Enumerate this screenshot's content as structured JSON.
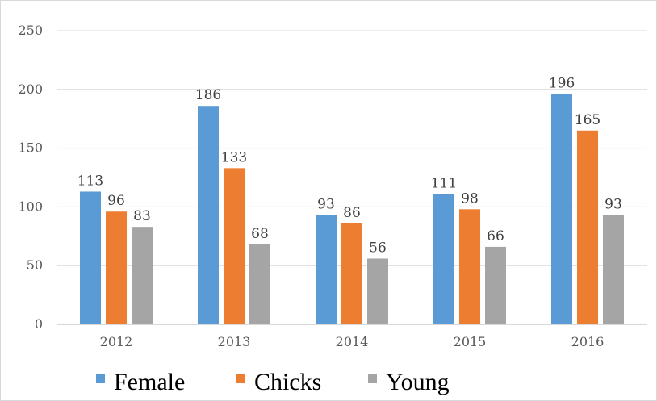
{
  "chart_data": {
    "type": "bar",
    "title": "",
    "xlabel": "",
    "ylabel": "",
    "categories": [
      "2012",
      "2013",
      "2014",
      "2015",
      "2016"
    ],
    "series": [
      {
        "name": "Female",
        "values": [
          113,
          186,
          93,
          111,
          196
        ],
        "color": "#5b9bd5"
      },
      {
        "name": "Chicks",
        "values": [
          96,
          133,
          86,
          98,
          165
        ],
        "color": "#ed7d31"
      },
      {
        "name": "Young",
        "values": [
          83,
          68,
          56,
          66,
          93
        ],
        "color": "#a5a5a5"
      }
    ],
    "ylim": [
      0,
      250
    ],
    "yticks": [
      0,
      50,
      100,
      150,
      200,
      250
    ],
    "grid": true,
    "legend": "bottom",
    "data_labels": true,
    "gridline_color": "#d9d9d9",
    "axis_color": "#bfbfbf"
  }
}
